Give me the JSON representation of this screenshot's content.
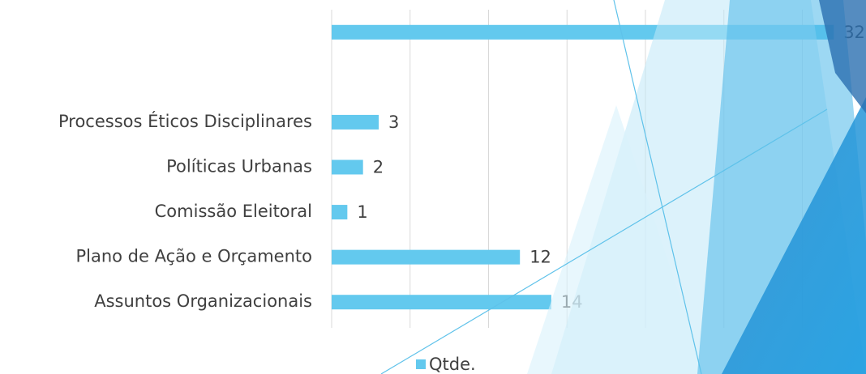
{
  "chart_data": {
    "type": "bar",
    "orientation": "horizontal",
    "categories": [
      "Assuntos Organizacionais",
      "Plano de Ação e Orçamento",
      "Comissão Eleitoral",
      "Políticas Urbanas",
      "Processos Éticos Disciplinares",
      null,
      null
    ],
    "series": [
      {
        "name": "Qtde.",
        "color": "#63c9ee",
        "values": [
          14,
          12,
          1,
          2,
          3,
          null,
          32
        ]
      }
    ],
    "xlim": [
      0,
      34
    ],
    "xticks": [
      0,
      5,
      10,
      15,
      20,
      25,
      30
    ],
    "grid": true,
    "legend": "bottom"
  }
}
